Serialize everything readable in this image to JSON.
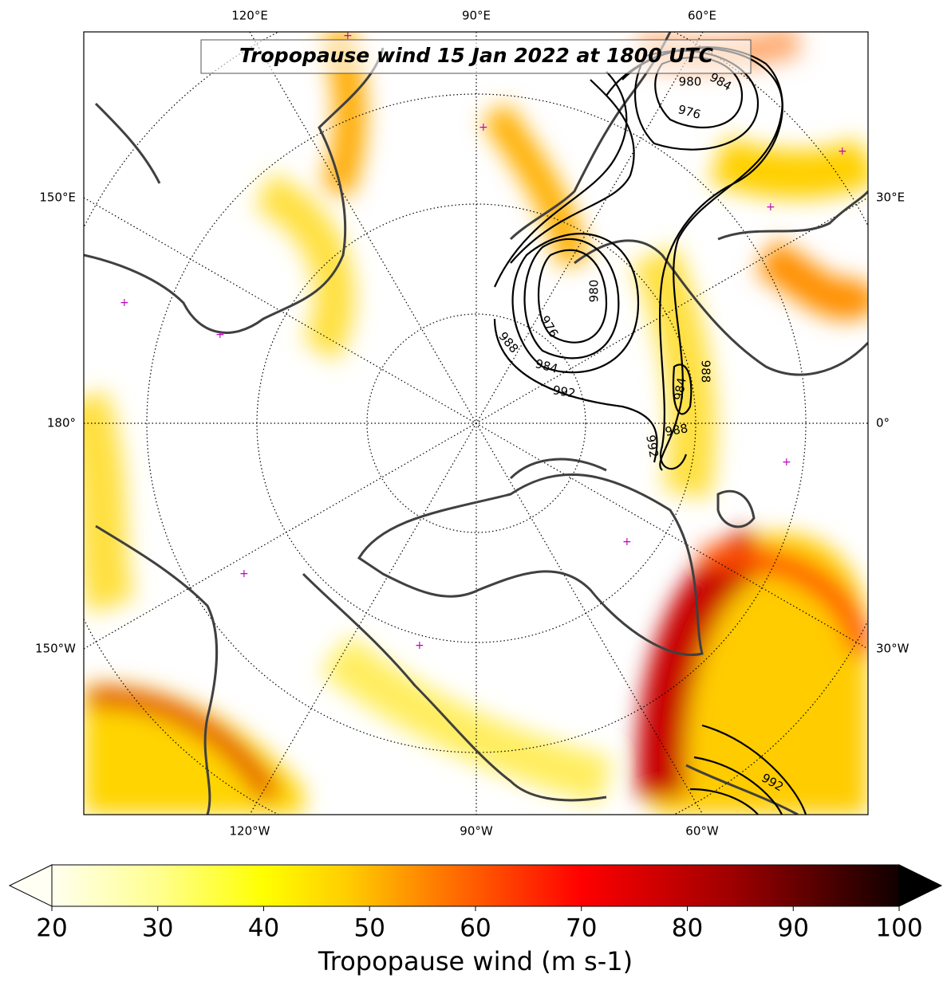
{
  "title": "Tropopause wind 15 Jan 2022 at 1800 UTC",
  "map": {
    "top_labels": [
      "120°E",
      "90°E",
      "60°E"
    ],
    "left_labels": [
      "150°E",
      "180°",
      "150°W"
    ],
    "right_labels": [
      "30°E",
      "0°",
      "30°W"
    ],
    "bottom_labels": [
      "120°W",
      "90°W",
      "60°W"
    ],
    "contour_labels": [
      980,
      984,
      976,
      980,
      976,
      988,
      984,
      992,
      988,
      984,
      988,
      992,
      992
    ]
  },
  "colorbar": {
    "label": "Tropopause wind (m s-1)",
    "lim": [
      20,
      100
    ],
    "ticks": [
      20,
      30,
      40,
      50,
      60,
      70,
      80,
      90,
      100
    ]
  }
}
